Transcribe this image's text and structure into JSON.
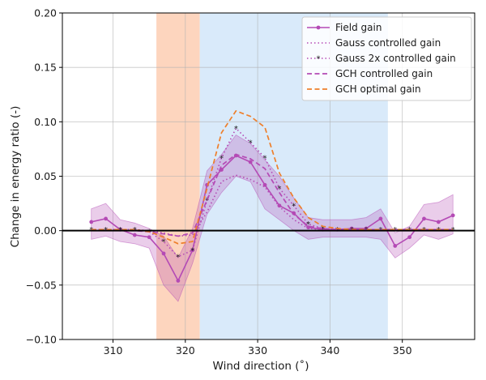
{
  "chart_data": {
    "type": "line",
    "title": "",
    "xlabel": "Wind direction (˚)",
    "ylabel": "Change in energy ratio (-)",
    "xlim": [
      303,
      360
    ],
    "ylim": [
      -0.1,
      0.2
    ],
    "x_ticks": [
      310,
      320,
      330,
      340,
      350
    ],
    "x_tick_labels": [
      "310",
      "320",
      "330",
      "340",
      "350"
    ],
    "y_ticks": [
      -0.1,
      -0.05,
      0.0,
      0.05,
      0.1,
      0.15,
      0.2
    ],
    "y_tick_labels": [
      "−0.10",
      "−0.05",
      "0.00",
      "0.05",
      "0.10",
      "0.15",
      "0.20"
    ],
    "grid": true,
    "zero_line": 0.0,
    "shaded_regions": [
      {
        "name": "orange-region",
        "x_range": [
          316,
          322
        ],
        "color": "#fdd5be"
      },
      {
        "name": "blue-region",
        "x_range": [
          322,
          348
        ],
        "color": "#d9eafa"
      }
    ],
    "x": [
      307,
      309,
      311,
      313,
      315,
      317,
      319,
      321,
      323,
      325,
      327,
      329,
      331,
      333,
      335,
      337,
      339,
      341,
      343,
      345,
      347,
      349,
      351,
      353,
      355,
      357
    ],
    "confidence_bands": [
      {
        "series": "Field gain",
        "lower": [
          -0.008,
          -0.005,
          -0.01,
          -0.012,
          -0.016,
          -0.05,
          -0.065,
          -0.03,
          0.015,
          0.035,
          0.05,
          0.045,
          0.02,
          0.01,
          0.0,
          -0.008,
          -0.006,
          -0.006,
          -0.006,
          -0.006,
          -0.008,
          -0.025,
          -0.016,
          -0.004,
          -0.008,
          -0.003
        ],
        "upper": [
          0.02,
          0.025,
          0.01,
          0.007,
          0.002,
          -0.005,
          -0.025,
          0.002,
          0.055,
          0.07,
          0.088,
          0.08,
          0.065,
          0.05,
          0.03,
          0.012,
          0.01,
          0.01,
          0.01,
          0.012,
          0.02,
          -0.002,
          0.004,
          0.024,
          0.026,
          0.033
        ],
        "color": "#b44ab5"
      }
    ],
    "series": [
      {
        "name": "Field gain",
        "style": "solid-markers",
        "color": "#b44ab5",
        "values": [
          0.008,
          0.011,
          0.001,
          -0.004,
          -0.006,
          -0.021,
          -0.046,
          -0.018,
          0.042,
          0.056,
          0.069,
          0.063,
          0.042,
          0.023,
          0.016,
          0.003,
          0.001,
          0.001,
          0.002,
          0.002,
          0.011,
          -0.014,
          -0.006,
          0.011,
          0.008,
          0.014
        ]
      },
      {
        "name": "Gauss controlled gain",
        "style": "dotted",
        "color": "#b44ab5",
        "values": [
          0.001,
          0.001,
          0.001,
          0.001,
          0.0,
          -0.002,
          -0.005,
          -0.004,
          0.017,
          0.045,
          0.051,
          0.047,
          0.04,
          0.022,
          0.01,
          0.002,
          0.001,
          0.001,
          0.001,
          0.001,
          0.001,
          0.001,
          0.001,
          0.001,
          0.001,
          0.001
        ]
      },
      {
        "name": "Gauss 2x controlled gain",
        "style": "dotted-markers",
        "color": "#b44ab5",
        "values": [
          0.001,
          0.001,
          0.001,
          0.001,
          -0.001,
          -0.01,
          -0.024,
          -0.018,
          0.028,
          0.067,
          0.094,
          0.081,
          0.067,
          0.039,
          0.023,
          0.006,
          0.002,
          0.001,
          0.001,
          0.001,
          0.001,
          0.001,
          0.001,
          0.001,
          0.001,
          0.001
        ]
      },
      {
        "name": "GCH controlled gain",
        "style": "dashed",
        "color": "#b44ab5",
        "values": [
          0.001,
          0.001,
          0.001,
          0.0,
          -0.001,
          -0.003,
          -0.005,
          -0.002,
          0.028,
          0.06,
          0.07,
          0.066,
          0.057,
          0.035,
          0.015,
          0.004,
          0.002,
          0.001,
          0.001,
          0.001,
          0.001,
          0.001,
          0.001,
          0.001,
          0.001,
          0.001
        ]
      },
      {
        "name": "GCH optimal gain",
        "style": "dashed",
        "color": "#ee7f2b",
        "values": [
          0.001,
          0.001,
          0.001,
          0.001,
          -0.001,
          -0.006,
          -0.012,
          -0.01,
          0.039,
          0.09,
          0.11,
          0.105,
          0.095,
          0.053,
          0.03,
          0.012,
          0.004,
          0.002,
          0.001,
          0.001,
          0.001,
          0.001,
          0.001,
          0.001,
          0.001,
          0.001
        ]
      }
    ],
    "legend": {
      "position": "top-right",
      "entries": [
        "Field gain",
        "Gauss controlled gain",
        "Gauss 2x controlled gain",
        "GCH controlled gain",
        "GCH optimal gain"
      ]
    }
  }
}
